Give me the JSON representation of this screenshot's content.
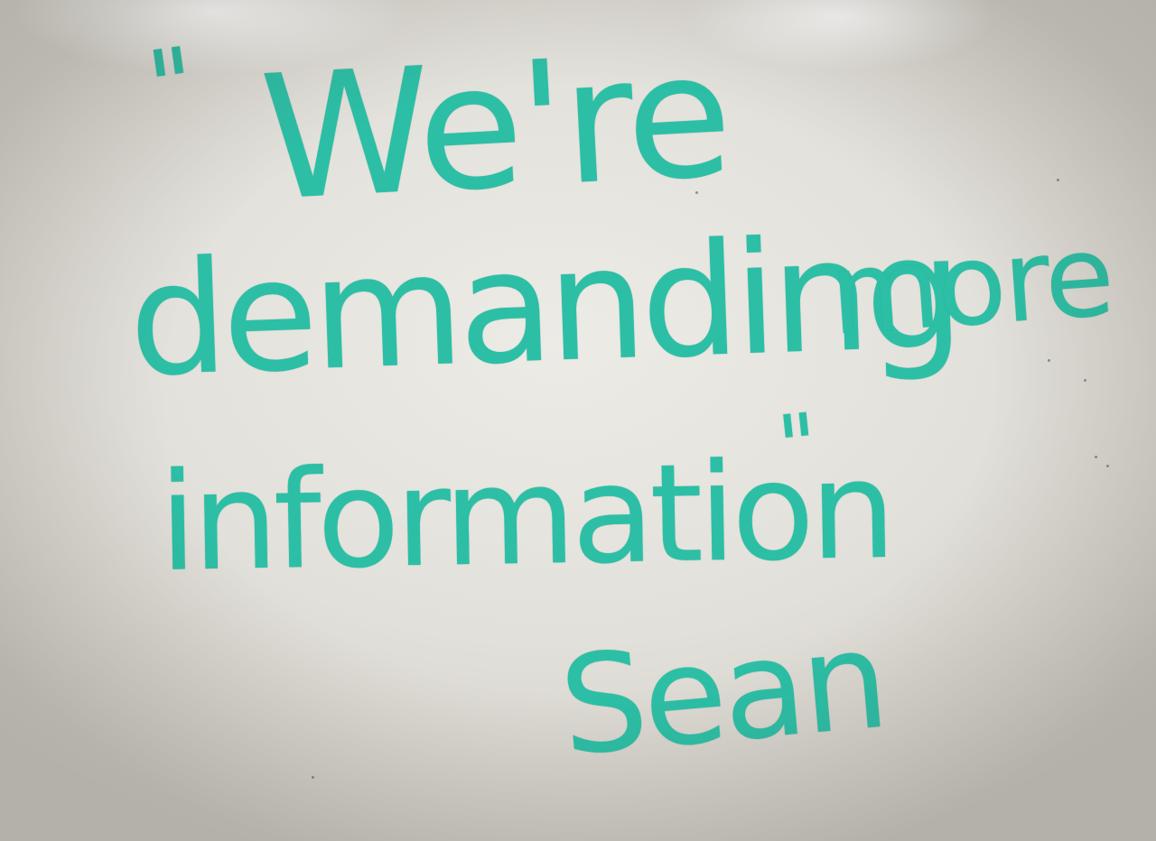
{
  "whiteboard": {
    "quote_open": "\"",
    "line1": "We're",
    "line2_word1": "demanding",
    "line2_word2": "more",
    "line3": "information",
    "quote_close": "\"",
    "signature": "Sean",
    "ink_color": "#2cbfa6",
    "board_color": "#e4e2dc"
  }
}
